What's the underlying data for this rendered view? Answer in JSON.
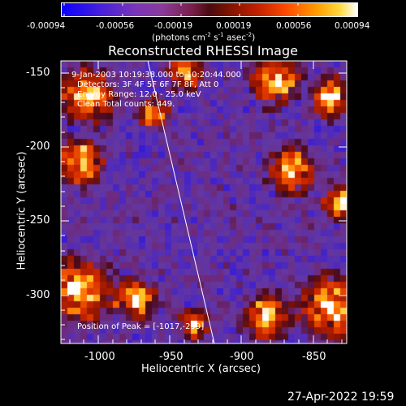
{
  "colorbar": {
    "tick_labels": [
      "-0.00094",
      "-0.00056",
      "-0.00019",
      "0.00019",
      "0.00056",
      "0.00094"
    ],
    "unit_prefix": "(photons cm",
    "unit_exp1": "-2",
    "unit_s": " s",
    "unit_exp2": "-1",
    "unit_asec": " asec",
    "unit_exp3": "-2",
    "unit_suffix": ")"
  },
  "plot": {
    "title": "Reconstructed RHESSI Image",
    "xlabel": "Heliocentric X (arcsec)",
    "ylabel": "Heliocentric Y (arcsec)",
    "x_ticks": [
      "-1000",
      "-950",
      "-900",
      "-850"
    ],
    "y_ticks": [
      "-150",
      "-200",
      "-250",
      "-300"
    ],
    "info_lines": [
      "9-Jan-2003 10:19:38.000 to 10:20:44.000",
      "Detectors: 3F 4F 5F 6F 7F 8F, Att 0",
      "Energy Range: 12.0 - 25.0 keV",
      "Clean    Total counts: 449."
    ],
    "peak_text": "Position of Peak = [-1017,-299]"
  },
  "footer": {
    "date": "27-Apr-2022 19:59"
  },
  "colors": {
    "background": "#000000",
    "text": "#ffffff",
    "limb_line": "#ffffff"
  }
}
